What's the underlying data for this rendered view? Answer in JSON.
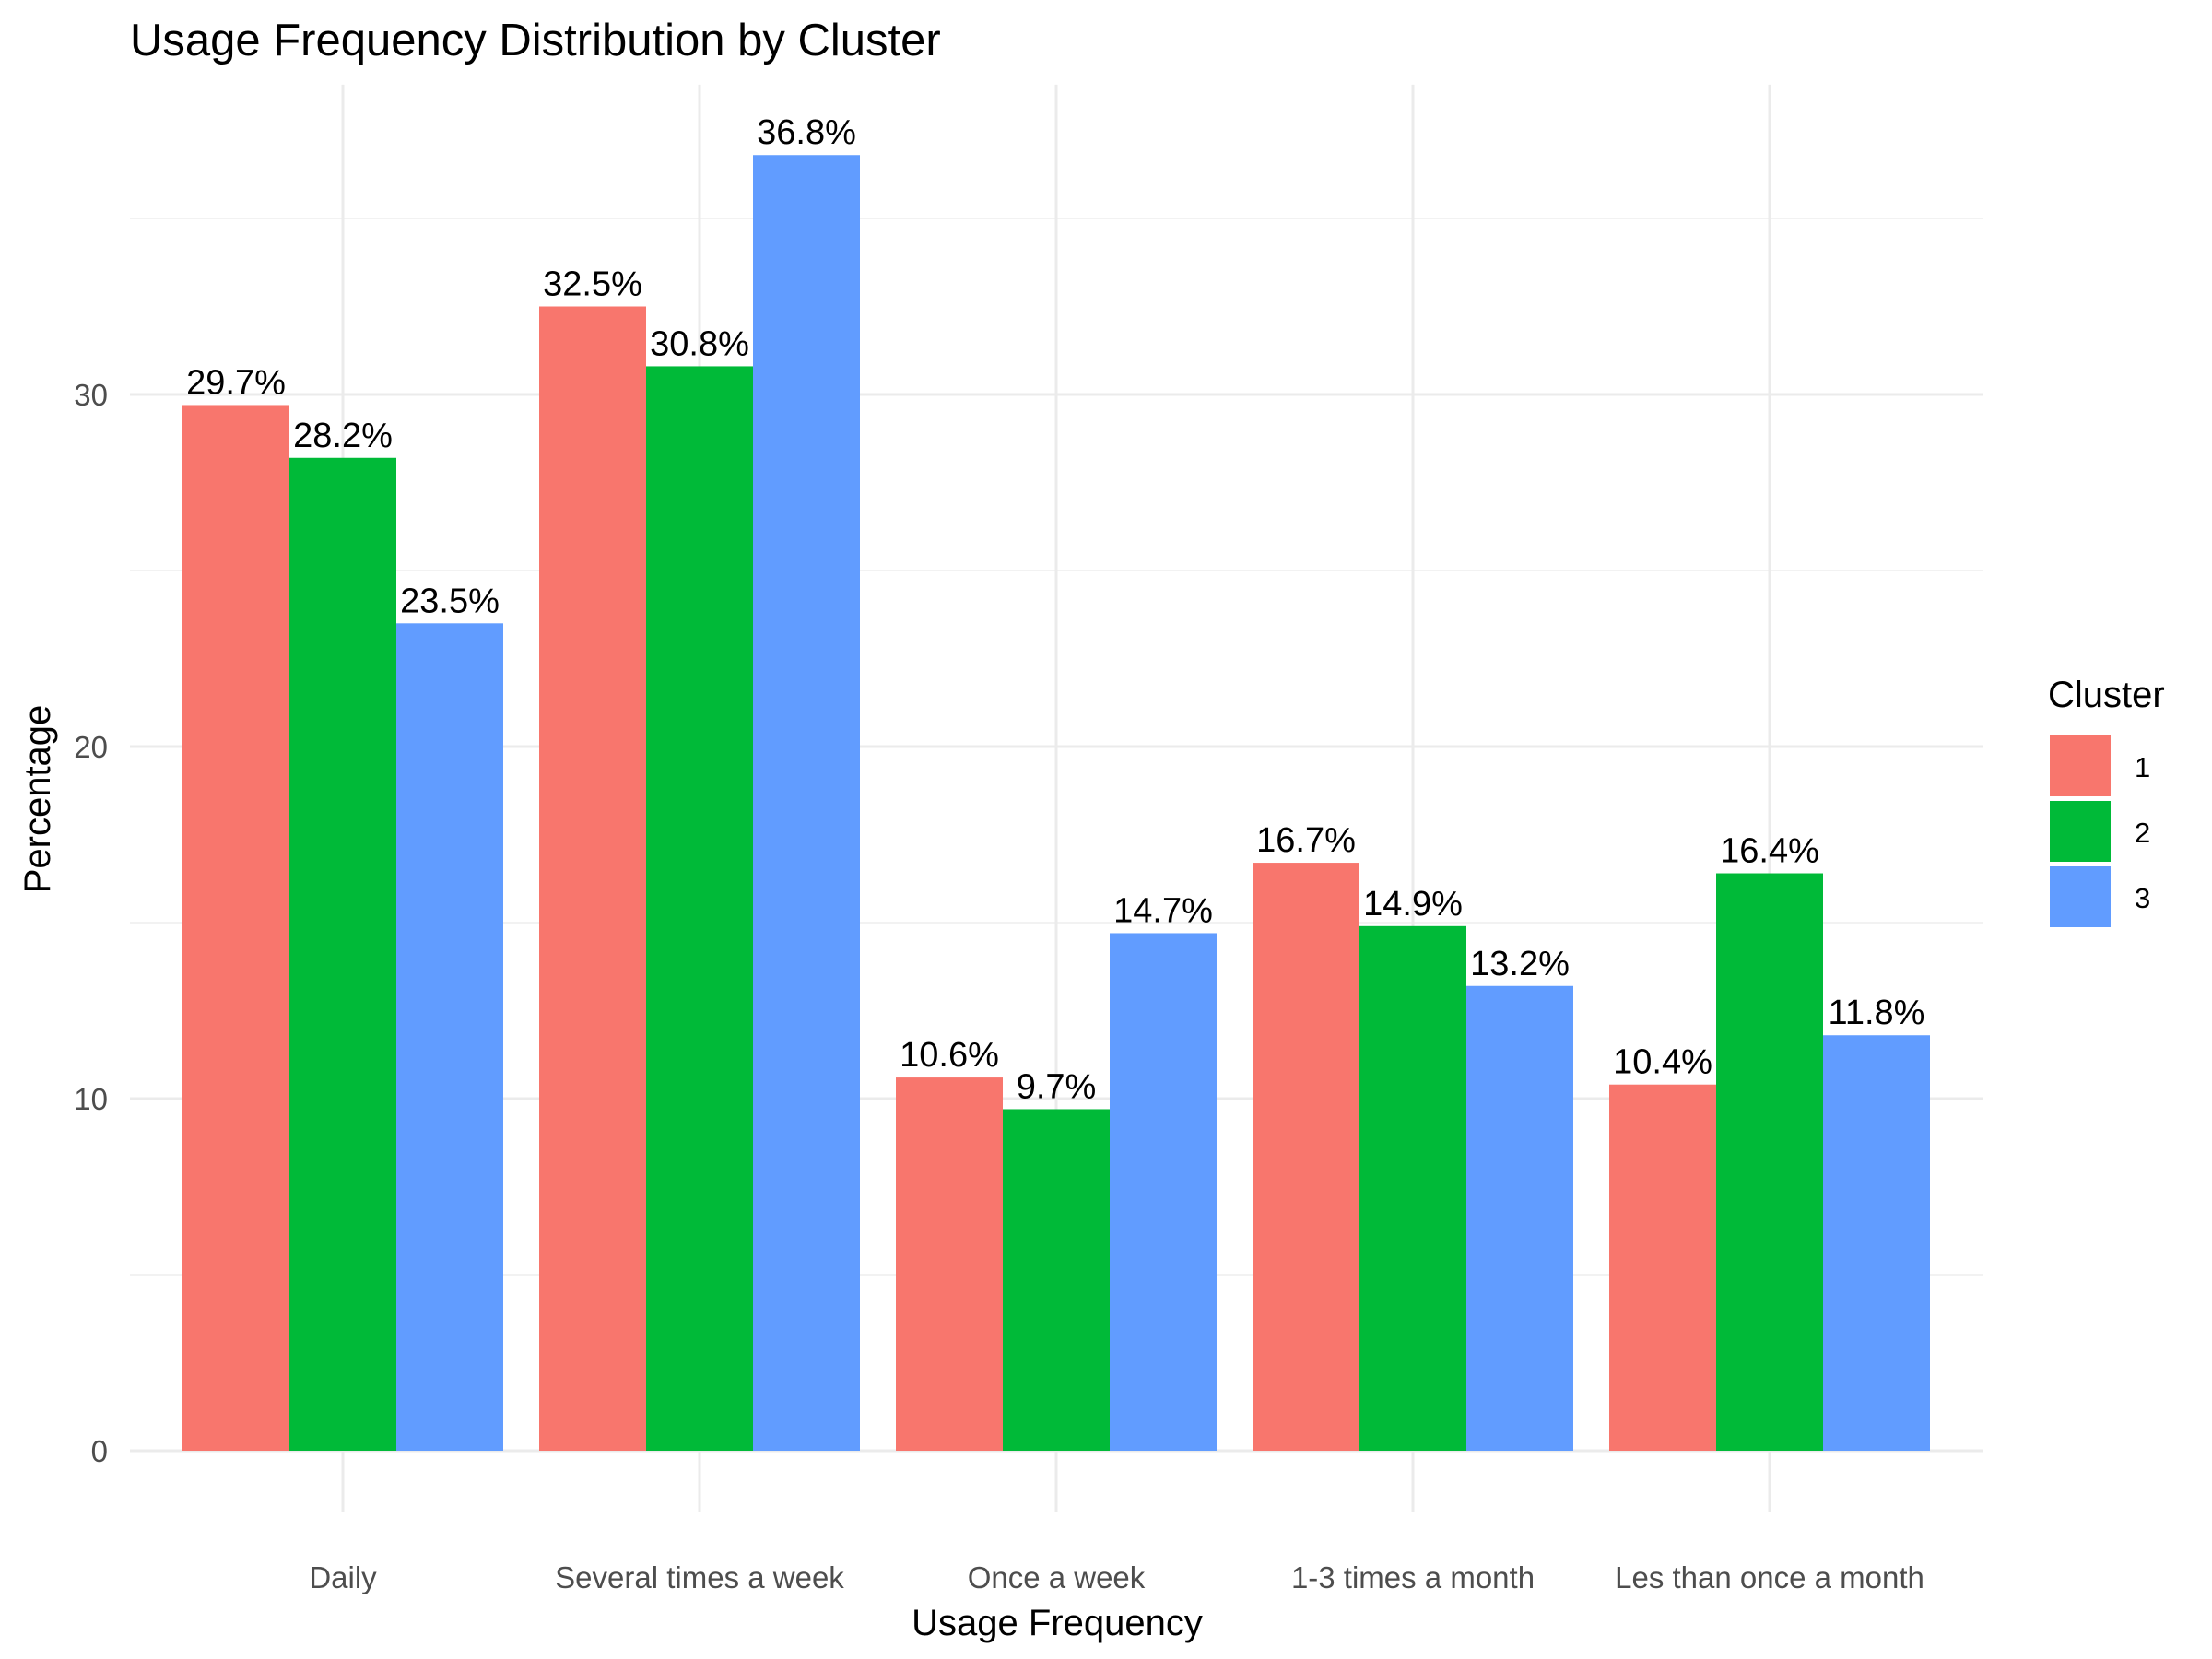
{
  "chart_data": {
    "type": "bar",
    "title": "Usage Frequency Distribution by Cluster",
    "xlabel": "Usage Frequency",
    "ylabel": "Percentage",
    "categories": [
      "Daily",
      "Several times a week",
      "Once a week",
      "1-3 times a month",
      "Les than once a month"
    ],
    "series": [
      {
        "name": "1",
        "color": "#F8766D",
        "values": [
          29.7,
          32.5,
          10.6,
          16.7,
          10.4
        ],
        "labels": [
          "29.7%",
          "32.5%",
          "10.6%",
          "16.7%",
          "10.4%"
        ]
      },
      {
        "name": "2",
        "color": "#00BA38",
        "values": [
          28.2,
          30.8,
          9.7,
          14.9,
          16.4
        ],
        "labels": [
          "28.2%",
          "30.8%",
          "9.7%",
          "14.9%",
          "16.4%"
        ]
      },
      {
        "name": "3",
        "color": "#619CFF",
        "values": [
          23.5,
          36.8,
          14.7,
          13.2,
          11.8
        ],
        "labels": [
          "23.5%",
          "36.8%",
          "14.7%",
          "13.2%",
          "11.8%"
        ]
      }
    ],
    "ylim": [
      0,
      38.8
    ],
    "yticks": [
      0,
      10,
      20,
      30
    ],
    "yticks_minor": [
      5,
      15,
      25,
      35
    ],
    "grid": true,
    "legend": {
      "title": "Cluster",
      "position": "right"
    }
  }
}
